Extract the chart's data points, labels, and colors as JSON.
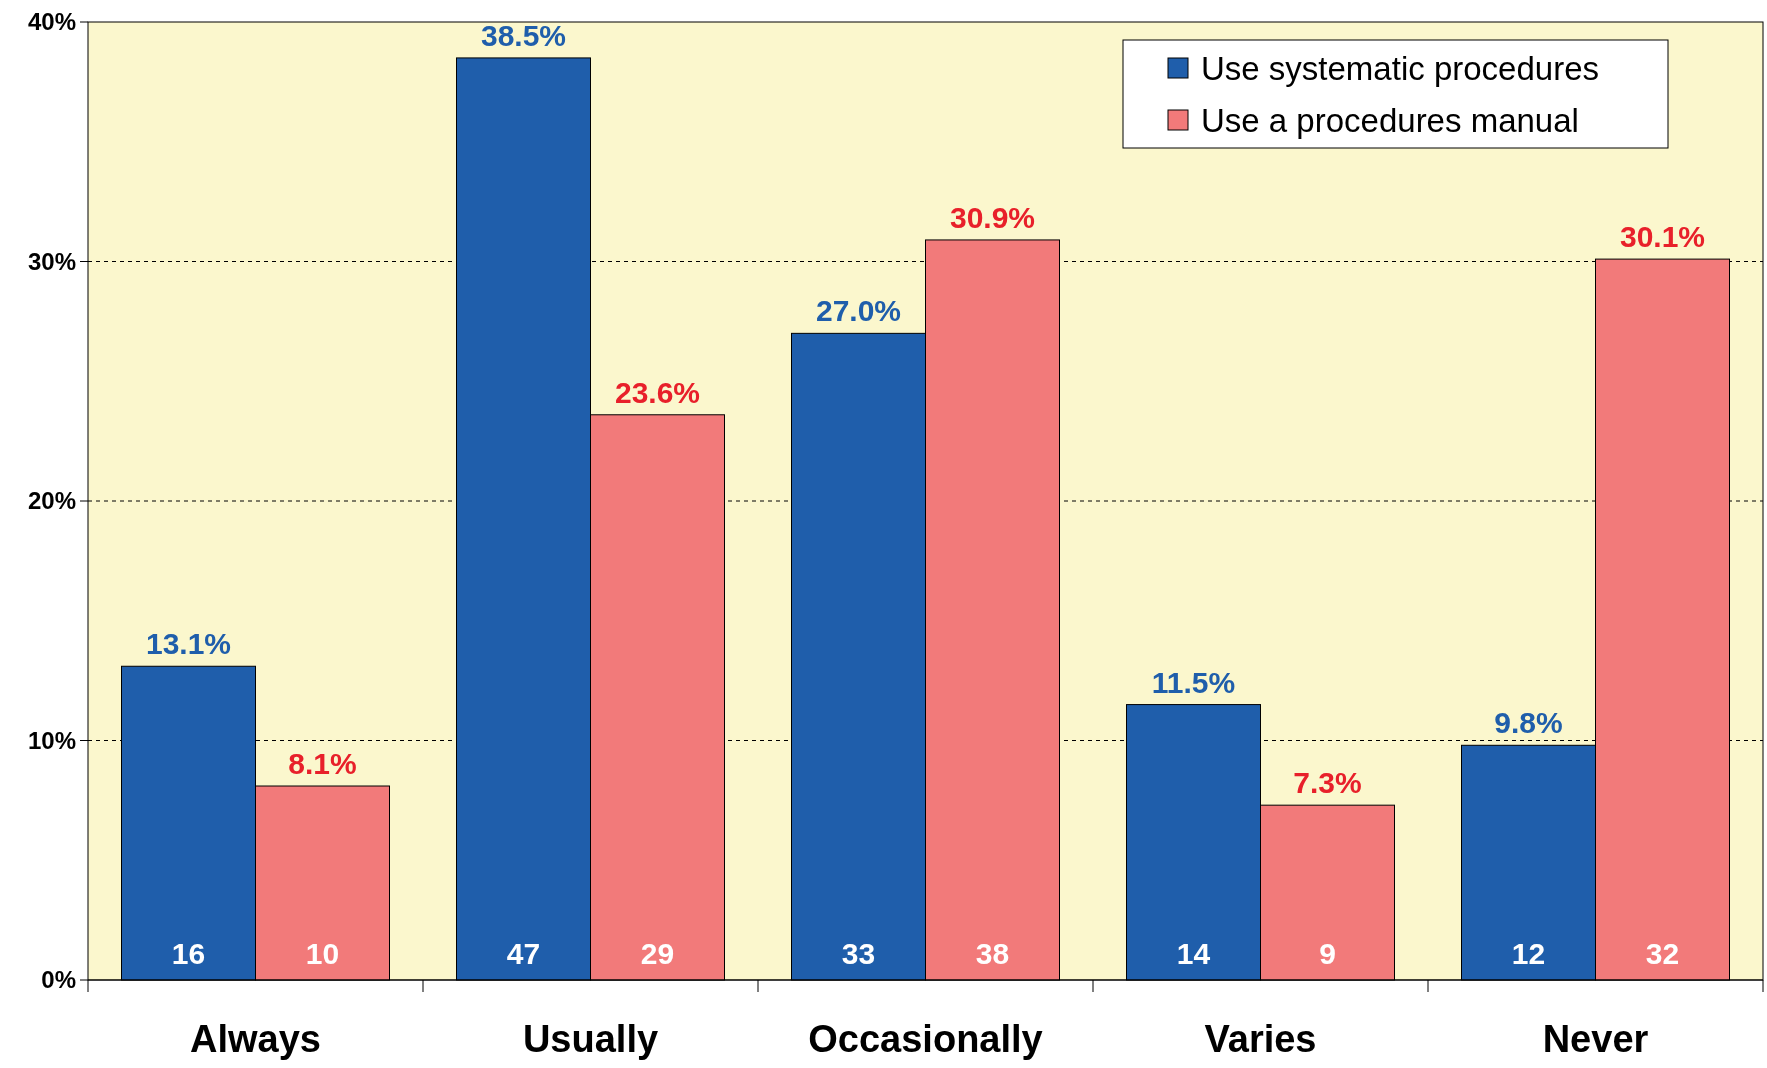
{
  "chart_data": {
    "type": "bar",
    "categories": [
      "Always",
      "Usually",
      "Occasionally",
      "Varies",
      "Never"
    ],
    "series": [
      {
        "name": "Use systematic procedures",
        "color": "#1f5eab",
        "values": [
          13.1,
          38.5,
          27.0,
          11.5,
          9.8
        ],
        "value_labels": [
          "13.1%",
          "38.5%",
          "27.0%",
          "11.5%",
          "9.8%"
        ]
      },
      {
        "name": "Use a procedures manual",
        "color": "#f27a7a",
        "values": [
          8.1,
          23.6,
          30.9,
          7.3,
          30.1
        ],
        "value_labels": [
          "8.1%",
          "23.6%",
          "30.9%",
          "7.3%",
          "30.1%"
        ]
      }
    ],
    "ylim": [
      0,
      40
    ],
    "yticks": [
      {
        "value": 0,
        "label": "0%"
      },
      {
        "value": 10,
        "label": "10%"
      },
      {
        "value": 20,
        "label": "20%"
      },
      {
        "value": 30,
        "label": "30%"
      },
      {
        "value": 40,
        "label": "40%"
      }
    ],
    "grid": "y",
    "legend": "top right",
    "annotations": [
      {
        "text": "16",
        "x": "Always",
        "y": 0
      },
      {
        "text": "10",
        "x": "Always",
        "y": 0
      },
      {
        "text": "47",
        "x": "Usually",
        "y": 0
      },
      {
        "text": "29",
        "x": "Usually",
        "y": 0
      },
      {
        "text": "33",
        "x": "Occasionally",
        "y": 0
      },
      {
        "text": "38",
        "x": "Occasionally",
        "y": 0
      },
      {
        "text": "14",
        "x": "Varies",
        "y": 0
      },
      {
        "text": "9",
        "x": "Varies",
        "y": 0
      },
      {
        "text": "12",
        "x": "Never",
        "y": 0
      },
      {
        "text": "32",
        "x": "Never",
        "y": 0
      }
    ]
  }
}
